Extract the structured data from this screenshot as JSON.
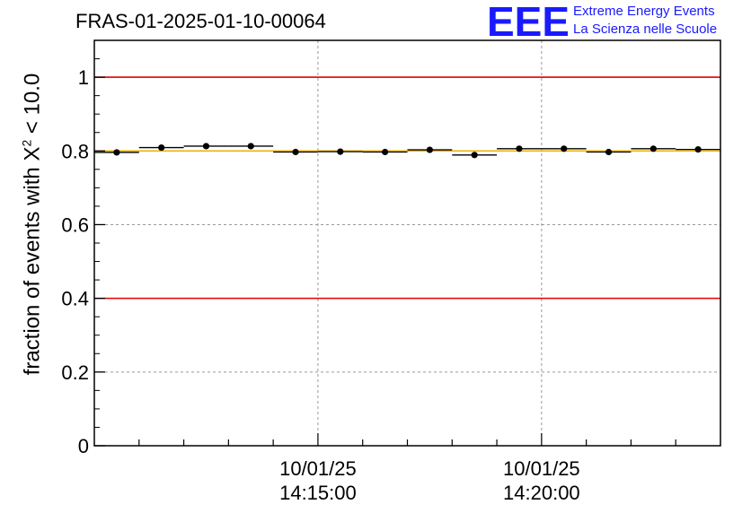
{
  "chart_data": {
    "type": "scatter",
    "title": "FRAS-01-2025-01-10-00064",
    "ylabel_prefix": "fraction of events with ",
    "ylabel_symbol": "X",
    "ylabel_exponent": "2",
    "ylabel_suffix": " < 10.0",
    "ylim": [
      0,
      1.1
    ],
    "yticks": [
      "0",
      "0.2",
      "0.4",
      "0.6",
      "0.8",
      "1"
    ],
    "ytick_values": [
      0,
      0.2,
      0.4,
      0.6,
      0.8,
      1.0
    ],
    "xlim_minutes": [
      0,
      14
    ],
    "xticks": [
      {
        "minute": 5,
        "date": "10/01/25",
        "time": "14:15:00"
      },
      {
        "minute": 10,
        "date": "10/01/25",
        "time": "14:20:00"
      }
    ],
    "grid": true,
    "reference_lines": [
      {
        "y": 1.0,
        "color": "#e00000"
      },
      {
        "y": 0.4,
        "color": "#e00000"
      },
      {
        "y": 0.8,
        "color": "#f2b200"
      }
    ],
    "points": [
      {
        "x": 0.5,
        "y": 0.796
      },
      {
        "x": 1.5,
        "y": 0.809
      },
      {
        "x": 2.5,
        "y": 0.813
      },
      {
        "x": 3.5,
        "y": 0.813
      },
      {
        "x": 4.5,
        "y": 0.797
      },
      {
        "x": 5.5,
        "y": 0.798
      },
      {
        "x": 6.5,
        "y": 0.797
      },
      {
        "x": 7.5,
        "y": 0.803
      },
      {
        "x": 8.5,
        "y": 0.789
      },
      {
        "x": 9.5,
        "y": 0.806
      },
      {
        "x": 10.5,
        "y": 0.806
      },
      {
        "x": 11.5,
        "y": 0.797
      },
      {
        "x": 12.5,
        "y": 0.806
      },
      {
        "x": 13.5,
        "y": 0.804
      }
    ],
    "bin_width_minutes": 1
  },
  "logo": {
    "mark": "EEE",
    "line1": "Extreme Energy Events",
    "line2": "La Scienza nelle Scuole",
    "color": "#1a1aff"
  }
}
